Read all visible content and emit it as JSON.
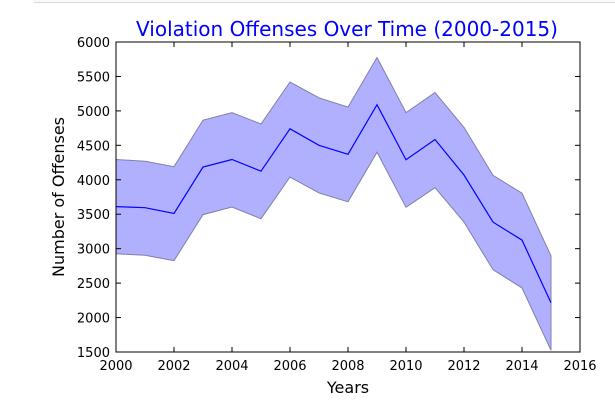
{
  "chart_data": {
    "type": "area",
    "title": "Violation Offenses Over Time (2000-2015)",
    "xlabel": "Years",
    "ylabel": "Number of Offenses",
    "xlim": [
      2000,
      2016
    ],
    "ylim": [
      1500,
      6000
    ],
    "xticks": [
      "2000",
      "2002",
      "2004",
      "2006",
      "2008",
      "2010",
      "2012",
      "2014",
      "2016"
    ],
    "yticks": [
      "1500",
      "2000",
      "2500",
      "3000",
      "3500",
      "4000",
      "4500",
      "5000",
      "5500",
      "6000"
    ],
    "x": [
      2000,
      2001,
      2002,
      2003,
      2004,
      2005,
      2006,
      2007,
      2008,
      2009,
      2010,
      2011,
      2012,
      2013,
      2014,
      2015
    ],
    "series": [
      {
        "values": [
          3610,
          3595,
          3510,
          4185,
          4295,
          4125,
          4740,
          4500,
          4370,
          5090,
          4290,
          4585,
          4070,
          3385,
          3125,
          2215
        ]
      }
    ],
    "band": {
      "upper": [
        4295,
        4270,
        4190,
        4865,
        4975,
        4810,
        5420,
        5190,
        5055,
        5775,
        4975,
        5265,
        4760,
        4065,
        3805,
        2895
      ],
      "lower": [
        2925,
        2905,
        2825,
        3495,
        3605,
        3435,
        4040,
        3810,
        3680,
        4400,
        3600,
        3885,
        3385,
        2695,
        2430,
        1525
      ]
    },
    "grid": false,
    "colors": {
      "line": "#0000ff",
      "band_fill": "#b0b0ff",
      "band_edge": "#8080a8",
      "title": "#0000ff",
      "axis": "#000000"
    }
  }
}
